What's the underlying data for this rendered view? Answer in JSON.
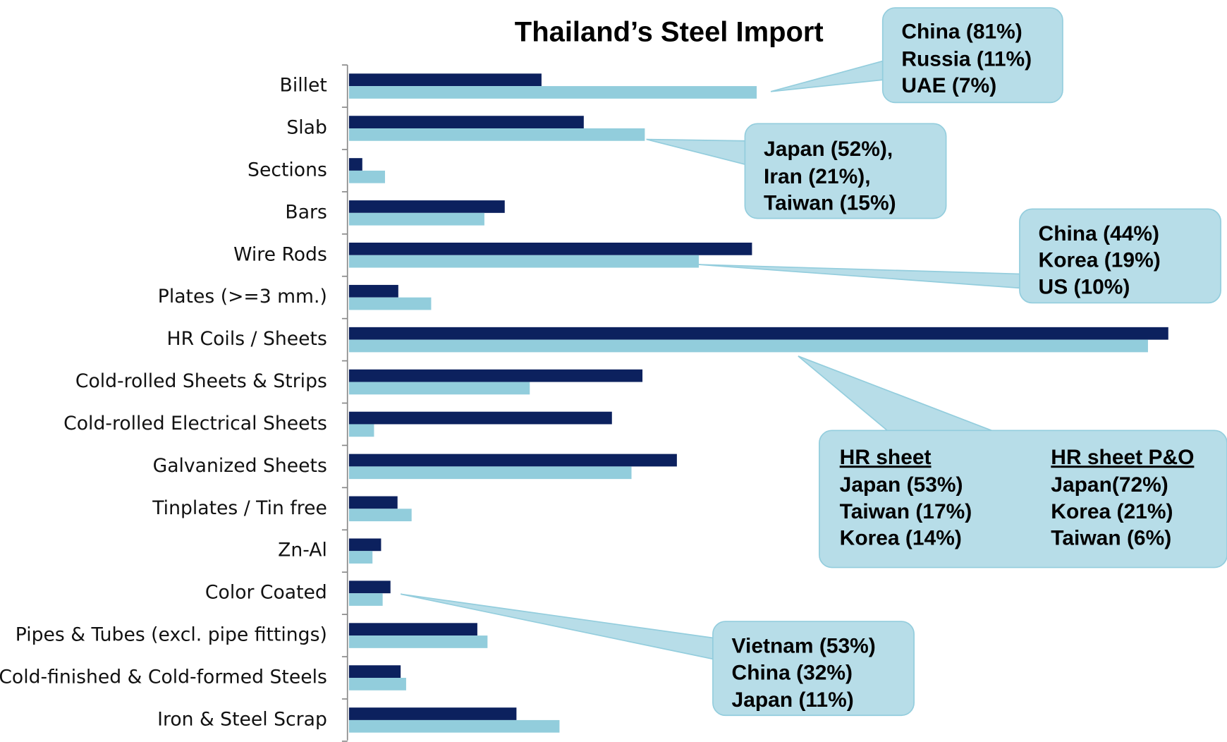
{
  "chart_data": {
    "type": "bar",
    "orientation": "horizontal",
    "title": "Thailand’s Steel Import",
    "categories": [
      "Billet",
      "Slab",
      "Sections",
      "Bars",
      "Wire Rods",
      "Plates (>=3 mm.)",
      "HR Coils / Sheets",
      "Cold-rolled Sheets & Strips",
      "Cold-rolled Electrical Sheets",
      "Galvanized Sheets",
      "Tinplates / Tin free",
      "Zn-Al",
      "Color Coated",
      "Pipes & Tubes (excl. pipe fittings)",
      "Cold-finished & Cold-formed Steels",
      "Iron & Steel Scrap"
    ],
    "series": [
      {
        "color": "#0c215e",
        "values": [
          246,
          300,
          17,
          199,
          515,
          63,
          1047,
          375,
          336,
          419,
          62,
          41,
          53,
          164,
          66,
          214
        ]
      },
      {
        "color": "#92cddc",
        "values": [
          521,
          378,
          46,
          173,
          447,
          105,
          1021,
          231,
          32,
          361,
          80,
          30,
          43,
          177,
          73,
          269
        ]
      }
    ],
    "annotations": [
      {
        "lines": [
          "China (81%)",
          "Russia (11%)",
          "UAE (7%)"
        ]
      },
      {
        "lines": [
          "Japan (52%),",
          "Iran (21%),",
          "Taiwan (15%)"
        ]
      },
      {
        "lines": [
          "China (44%)",
          "Korea (19%)",
          "US (10%)"
        ]
      },
      {
        "columns": [
          {
            "header": "HR sheet",
            "lines": [
              "Japan (53%)",
              "Taiwan (17%)",
              "Korea (14%)"
            ]
          },
          {
            "header": "HR sheet P&O",
            "lines": [
              "Japan(72%)",
              "Korea (21%)",
              "Taiwan (6%)"
            ]
          }
        ]
      },
      {
        "lines": [
          "Vietnam (53%)",
          "China (32%)",
          "Japan (11%)"
        ]
      }
    ]
  }
}
